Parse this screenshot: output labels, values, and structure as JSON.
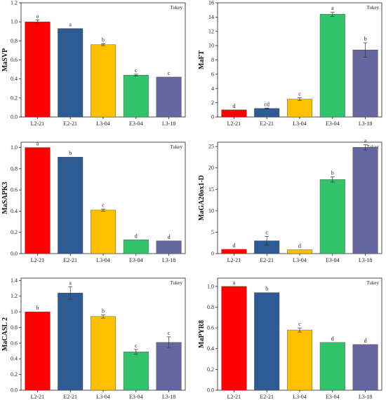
{
  "colors": [
    "#ff0000",
    "#2e5b94",
    "#ffc000",
    "#33c46b",
    "#6566a0"
  ],
  "chart_data": [
    {
      "type": "bar",
      "note": "Tukey",
      "ylabel": "MaSVP",
      "categories": [
        "L2-21",
        "E2-21",
        "L3-04",
        "E3-04",
        "L3-18"
      ],
      "values": [
        1.0,
        0.93,
        0.76,
        0.44,
        0.42
      ],
      "errors": [
        0.02,
        0.0,
        0.01,
        0.01,
        0.0
      ],
      "letters": [
        "a",
        "a",
        "b",
        "c",
        "c"
      ],
      "ylim": [
        0,
        1.2
      ],
      "yticks": [
        "0.0",
        "0.2",
        "0.4",
        "0.6",
        "0.8",
        "1.0",
        "1.2"
      ]
    },
    {
      "type": "bar",
      "note": "Tukey",
      "ylabel": "MaFT",
      "categories": [
        "L2-21",
        "E2-21",
        "L3-04",
        "E3-04",
        "L3-18"
      ],
      "values": [
        1.0,
        1.2,
        2.5,
        14.4,
        9.4
      ],
      "errors": [
        0.0,
        0.05,
        0.2,
        0.3,
        1.0
      ],
      "letters": [
        "d",
        "cd",
        "c",
        "a",
        "b"
      ],
      "ylim": [
        0,
        16
      ],
      "yticks": [
        "0",
        "2",
        "4",
        "6",
        "8",
        "10",
        "12",
        "14",
        "16"
      ]
    },
    {
      "type": "bar",
      "note": "Tukey",
      "ylabel": "MaSAPK3",
      "categories": [
        "L2-21",
        "E2-21",
        "L3-04",
        "E3-04",
        "L3-18"
      ],
      "values": [
        1.0,
        0.91,
        0.41,
        0.13,
        0.12
      ],
      "errors": [
        0.0,
        0.0,
        0.01,
        0.0,
        0.0
      ],
      "letters": [
        "a",
        "b",
        "c",
        "d",
        "d"
      ],
      "ylim": [
        0,
        1.05
      ],
      "yticks": [
        "0.0",
        "0.2",
        "0.4",
        "0.6",
        "0.8",
        "1.0"
      ]
    },
    {
      "type": "bar",
      "note": "Tukey",
      "ylabel": "MaGA20ox1-D",
      "categories": [
        "L2-21",
        "E2-21",
        "L3-04",
        "E3-04",
        "L3-18"
      ],
      "values": [
        1.0,
        3.0,
        0.9,
        17.3,
        24.8
      ],
      "errors": [
        0.0,
        1.0,
        0.0,
        0.6,
        0.6
      ],
      "letters": [
        "d",
        "c",
        "d",
        "b",
        "a"
      ],
      "ylim": [
        0,
        26
      ],
      "yticks": [
        "0",
        "5",
        "10",
        "15",
        "20",
        "25"
      ]
    },
    {
      "type": "bar",
      "note": "Tukey",
      "ylabel": "MaCASL 2",
      "categories": [
        "L2-21",
        "E2-21",
        "L3-04",
        "E3-04",
        "L3-18"
      ],
      "values": [
        1.0,
        1.24,
        0.94,
        0.49,
        0.61
      ],
      "errors": [
        0.0,
        0.08,
        0.02,
        0.03,
        0.07
      ],
      "letters": [
        "b",
        "a",
        "b",
        "c",
        "c"
      ],
      "ylim": [
        0,
        1.43
      ],
      "yticks": [
        "0.0",
        "0.2",
        "0.4",
        "0.6",
        "0.8",
        "1.0",
        "1.2",
        "1.4"
      ]
    },
    {
      "type": "bar",
      "note": "Tukey",
      "ylabel": "MaPYR8",
      "categories": [
        "L2-21",
        "E2-21",
        "L3-04",
        "E3-04",
        "L3-18"
      ],
      "values": [
        1.0,
        0.94,
        0.58,
        0.46,
        0.44
      ],
      "errors": [
        0.0,
        0.0,
        0.02,
        0.0,
        0.0
      ],
      "letters": [
        "a",
        "b",
        "c",
        "d",
        "d"
      ],
      "ylim": [
        0,
        1.08
      ],
      "yticks": [
        "0.0",
        "0.2",
        "0.4",
        "0.6",
        "0.8",
        "1.0"
      ]
    }
  ]
}
